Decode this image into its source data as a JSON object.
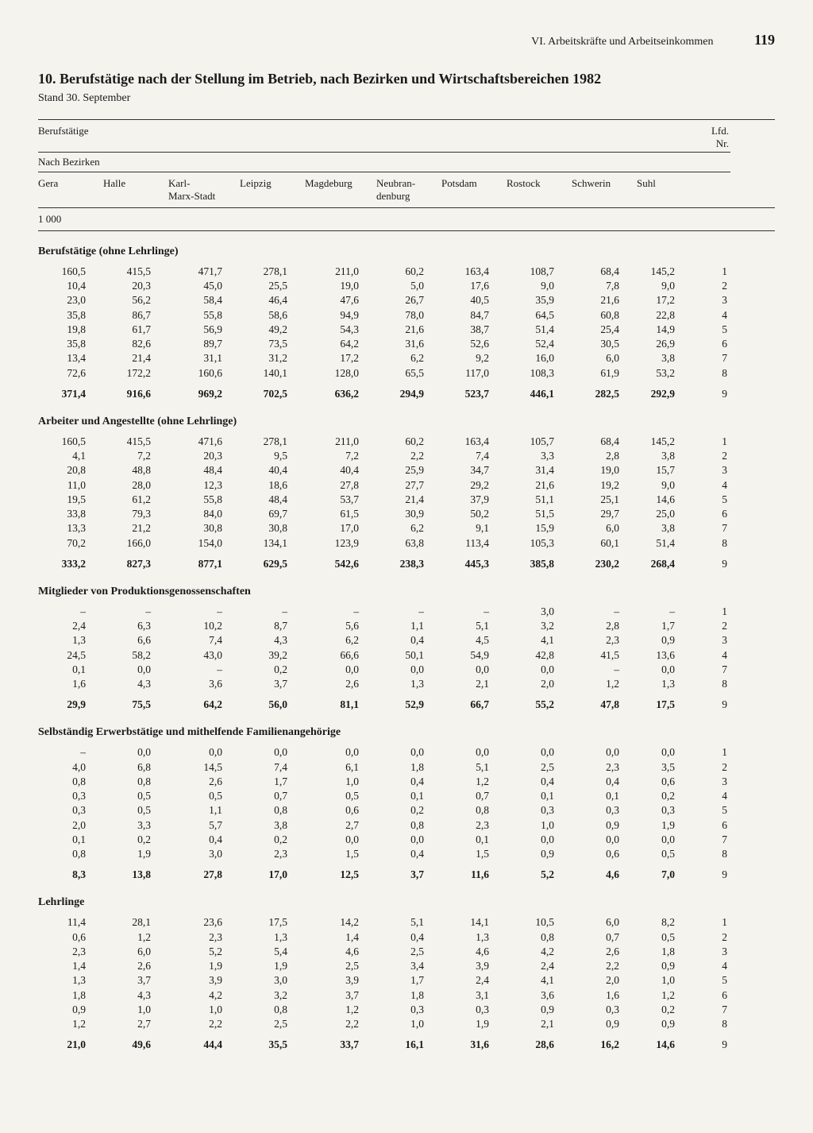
{
  "page": {
    "chapter": "VI. Arbeitskräfte und Arbeitseinkommen",
    "number": "119"
  },
  "title": "10. Berufstätige nach der Stellung im Betrieb, nach Bezirken und Wirtschaftsbereichen 1982",
  "subtitle": "Stand 30. September",
  "header": {
    "group": "Berufstätige",
    "sub": "Nach Bezirken",
    "lfd": "Lfd.\nNr.",
    "cols": [
      "Gera",
      "Halle",
      "Karl-\nMarx-Stadt",
      "Leipzig",
      "Magdeburg",
      "Neubran-\ndenburg",
      "Potsdam",
      "Rostock",
      "Schwerin",
      "Suhl"
    ]
  },
  "unit": "1 000",
  "sections": [
    {
      "title": "Berufstätige (ohne Lehrlinge)",
      "rows": [
        [
          "160,5",
          "415,5",
          "471,7",
          "278,1",
          "211,0",
          "60,2",
          "163,4",
          "108,7",
          "68,4",
          "145,2",
          "1"
        ],
        [
          "10,4",
          "20,3",
          "45,0",
          "25,5",
          "19,0",
          "5,0",
          "17,6",
          "9,0",
          "7,8",
          "9,0",
          "2"
        ],
        [
          "23,0",
          "56,2",
          "58,4",
          "46,4",
          "47,6",
          "26,7",
          "40,5",
          "35,9",
          "21,6",
          "17,2",
          "3"
        ],
        [
          "35,8",
          "86,7",
          "55,8",
          "58,6",
          "94,9",
          "78,0",
          "84,7",
          "64,5",
          "60,8",
          "22,8",
          "4"
        ],
        [
          "19,8",
          "61,7",
          "56,9",
          "49,2",
          "54,3",
          "21,6",
          "38,7",
          "51,4",
          "25,4",
          "14,9",
          "5"
        ],
        [
          "35,8",
          "82,6",
          "89,7",
          "73,5",
          "64,2",
          "31,6",
          "52,6",
          "52,4",
          "30,5",
          "26,9",
          "6"
        ],
        [
          "13,4",
          "21,4",
          "31,1",
          "31,2",
          "17,2",
          "6,2",
          "9,2",
          "16,0",
          "6,0",
          "3,8",
          "7"
        ],
        [
          "72,6",
          "172,2",
          "160,6",
          "140,1",
          "128,0",
          "65,5",
          "117,0",
          "108,3",
          "61,9",
          "53,2",
          "8"
        ]
      ],
      "total": [
        "371,4",
        "916,6",
        "969,2",
        "702,5",
        "636,2",
        "294,9",
        "523,7",
        "446,1",
        "282,5",
        "292,9",
        "9"
      ]
    },
    {
      "title": "Arbeiter und Angestellte (ohne Lehrlinge)",
      "rows": [
        [
          "160,5",
          "415,5",
          "471,6",
          "278,1",
          "211,0",
          "60,2",
          "163,4",
          "105,7",
          "68,4",
          "145,2",
          "1"
        ],
        [
          "4,1",
          "7,2",
          "20,3",
          "9,5",
          "7,2",
          "2,2",
          "7,4",
          "3,3",
          "2,8",
          "3,8",
          "2"
        ],
        [
          "20,8",
          "48,8",
          "48,4",
          "40,4",
          "40,4",
          "25,9",
          "34,7",
          "31,4",
          "19,0",
          "15,7",
          "3"
        ],
        [
          "11,0",
          "28,0",
          "12,3",
          "18,6",
          "27,8",
          "27,7",
          "29,2",
          "21,6",
          "19,2",
          "9,0",
          "4"
        ],
        [
          "19,5",
          "61,2",
          "55,8",
          "48,4",
          "53,7",
          "21,4",
          "37,9",
          "51,1",
          "25,1",
          "14,6",
          "5"
        ],
        [
          "33,8",
          "79,3",
          "84,0",
          "69,7",
          "61,5",
          "30,9",
          "50,2",
          "51,5",
          "29,7",
          "25,0",
          "6"
        ],
        [
          "13,3",
          "21,2",
          "30,8",
          "30,8",
          "17,0",
          "6,2",
          "9,1",
          "15,9",
          "6,0",
          "3,8",
          "7"
        ],
        [
          "70,2",
          "166,0",
          "154,0",
          "134,1",
          "123,9",
          "63,8",
          "113,4",
          "105,3",
          "60,1",
          "51,4",
          "8"
        ]
      ],
      "total": [
        "333,2",
        "827,3",
        "877,1",
        "629,5",
        "542,6",
        "238,3",
        "445,3",
        "385,8",
        "230,2",
        "268,4",
        "9"
      ]
    },
    {
      "title": "Mitglieder von Produktionsgenossenschaften",
      "rows": [
        [
          "–",
          "–",
          "–",
          "–",
          "–",
          "–",
          "–",
          "3,0",
          "–",
          "–",
          "1"
        ],
        [
          "2,4",
          "6,3",
          "10,2",
          "8,7",
          "5,6",
          "1,1",
          "5,1",
          "3,2",
          "2,8",
          "1,7",
          "2"
        ],
        [
          "1,3",
          "6,6",
          "7,4",
          "4,3",
          "6,2",
          "0,4",
          "4,5",
          "4,1",
          "2,3",
          "0,9",
          "3"
        ],
        [
          "24,5",
          "58,2",
          "43,0",
          "39,2",
          "66,6",
          "50,1",
          "54,9",
          "42,8",
          "41,5",
          "13,6",
          "4"
        ],
        [
          "0,1",
          "0,0",
          "–",
          "0,2",
          "0,0",
          "0,0",
          "0,0",
          "0,0",
          "–",
          "0,0",
          "7"
        ],
        [
          "1,6",
          "4,3",
          "3,6",
          "3,7",
          "2,6",
          "1,3",
          "2,1",
          "2,0",
          "1,2",
          "1,3",
          "8"
        ]
      ],
      "total": [
        "29,9",
        "75,5",
        "64,2",
        "56,0",
        "81,1",
        "52,9",
        "66,7",
        "55,2",
        "47,8",
        "17,5",
        "9"
      ]
    },
    {
      "title": "Selbständig Erwerbstätige und mithelfende Familienangehörige",
      "rows": [
        [
          "–",
          "0,0",
          "0,0",
          "0,0",
          "0,0",
          "0,0",
          "0,0",
          "0,0",
          "0,0",
          "0,0",
          "1"
        ],
        [
          "4,0",
          "6,8",
          "14,5",
          "7,4",
          "6,1",
          "1,8",
          "5,1",
          "2,5",
          "2,3",
          "3,5",
          "2"
        ],
        [
          "0,8",
          "0,8",
          "2,6",
          "1,7",
          "1,0",
          "0,4",
          "1,2",
          "0,4",
          "0,4",
          "0,6",
          "3"
        ],
        [
          "0,3",
          "0,5",
          "0,5",
          "0,7",
          "0,5",
          "0,1",
          "0,7",
          "0,1",
          "0,1",
          "0,2",
          "4"
        ],
        [
          "0,3",
          "0,5",
          "1,1",
          "0,8",
          "0,6",
          "0,2",
          "0,8",
          "0,3",
          "0,3",
          "0,3",
          "5"
        ],
        [
          "2,0",
          "3,3",
          "5,7",
          "3,8",
          "2,7",
          "0,8",
          "2,3",
          "1,0",
          "0,9",
          "1,9",
          "6"
        ],
        [
          "0,1",
          "0,2",
          "0,4",
          "0,2",
          "0,0",
          "0,0",
          "0,1",
          "0,0",
          "0,0",
          "0,0",
          "7"
        ],
        [
          "0,8",
          "1,9",
          "3,0",
          "2,3",
          "1,5",
          "0,4",
          "1,5",
          "0,9",
          "0,6",
          "0,5",
          "8"
        ]
      ],
      "total": [
        "8,3",
        "13,8",
        "27,8",
        "17,0",
        "12,5",
        "3,7",
        "11,6",
        "5,2",
        "4,6",
        "7,0",
        "9"
      ]
    },
    {
      "title": "Lehrlinge",
      "rows": [
        [
          "11,4",
          "28,1",
          "23,6",
          "17,5",
          "14,2",
          "5,1",
          "14,1",
          "10,5",
          "6,0",
          "8,2",
          "1"
        ],
        [
          "0,6",
          "1,2",
          "2,3",
          "1,3",
          "1,4",
          "0,4",
          "1,3",
          "0,8",
          "0,7",
          "0,5",
          "2"
        ],
        [
          "2,3",
          "6,0",
          "5,2",
          "5,4",
          "4,6",
          "2,5",
          "4,6",
          "4,2",
          "2,6",
          "1,8",
          "3"
        ],
        [
          "1,4",
          "2,6",
          "1,9",
          "1,9",
          "2,5",
          "3,4",
          "3,9",
          "2,4",
          "2,2",
          "0,9",
          "4"
        ],
        [
          "1,3",
          "3,7",
          "3,9",
          "3,0",
          "3,9",
          "1,7",
          "2,4",
          "4,1",
          "2,0",
          "1,0",
          "5"
        ],
        [
          "1,8",
          "4,3",
          "4,2",
          "3,2",
          "3,7",
          "1,8",
          "3,1",
          "3,6",
          "1,6",
          "1,2",
          "6"
        ],
        [
          "0,9",
          "1,0",
          "1,0",
          "0,8",
          "1,2",
          "0,3",
          "0,3",
          "0,9",
          "0,3",
          "0,2",
          "7"
        ],
        [
          "1,2",
          "2,7",
          "2,2",
          "2,5",
          "2,2",
          "1,0",
          "1,9",
          "2,1",
          "0,9",
          "0,9",
          "8"
        ]
      ],
      "total": [
        "21,0",
        "49,6",
        "44,4",
        "35,5",
        "33,7",
        "16,1",
        "31,6",
        "28,6",
        "16,2",
        "14,6",
        "9"
      ]
    }
  ]
}
